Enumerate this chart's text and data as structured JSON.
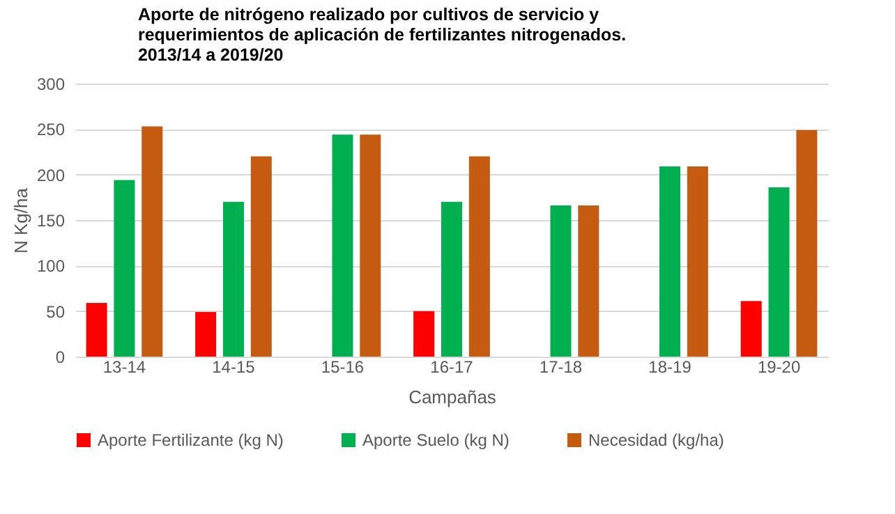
{
  "chart_data": {
    "type": "bar",
    "title": "Aporte de nitrógeno realizado por cultivos de servicio y\nrequerimientos de aplicación de fertilizantes nitrogenados.\n2013/14 a 2019/20",
    "xlabel": "Campañas",
    "ylabel": "N Kg/ha",
    "categories": [
      "13-14",
      "14-15",
      "15-16",
      "16-17",
      "17-18",
      "18-19",
      "19-20"
    ],
    "series": [
      {
        "name": "Aporte Fertilizante (kg N)",
        "color": "#ff0000",
        "values": [
          59,
          49,
          null,
          50,
          null,
          null,
          61
        ]
      },
      {
        "name": "Aporte Suelo (kg N)",
        "color": "#00b050",
        "values": [
          194,
          170,
          244,
          170,
          166,
          209,
          186
        ]
      },
      {
        "name": "Necesidad (kg/ha)",
        "color": "#c55a11",
        "values": [
          253,
          220,
          244,
          220,
          166,
          209,
          249
        ]
      }
    ],
    "ylim": [
      0,
      300
    ],
    "yticks": [
      0,
      50,
      100,
      150,
      200,
      250,
      300
    ],
    "grid": "y",
    "legend": "bottom"
  }
}
